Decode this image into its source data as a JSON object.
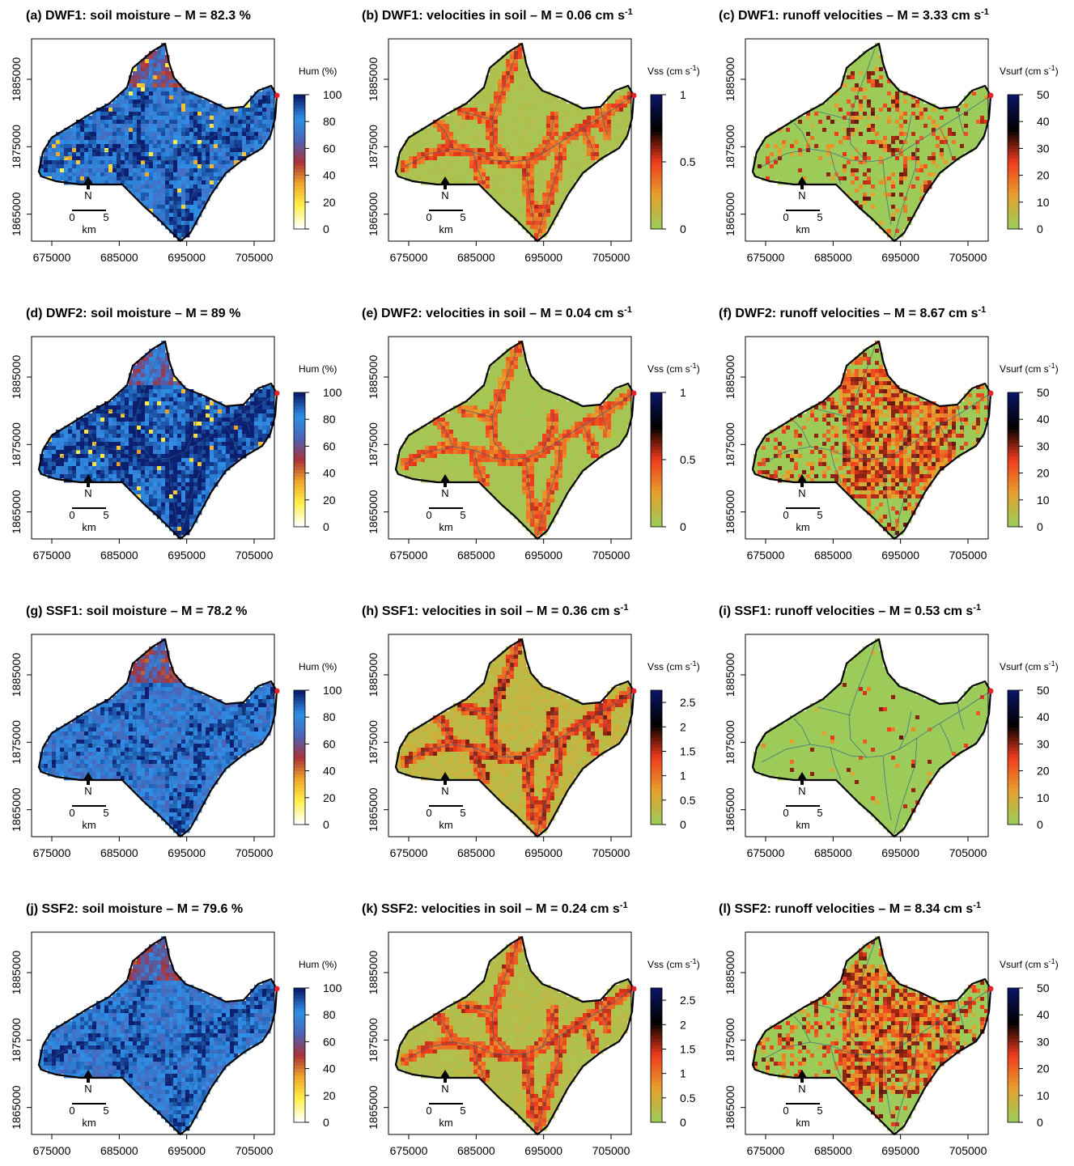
{
  "chart_data": [
    {
      "type": "heatmap",
      "id": "a",
      "title_pre": "(a) DWF1:  soil moisture – M = 82.3 %",
      "title_sup": "",
      "title_post": "",
      "var": "hum",
      "mean": 82.3,
      "colorbar": {
        "label_pre": "Hum (%)",
        "label_sup": "",
        "label_post": "",
        "palette": "hum",
        "min": 0,
        "max": 100,
        "ticks": [
          "0",
          "20",
          "40",
          "60",
          "80",
          "100"
        ]
      }
    },
    {
      "type": "heatmap",
      "id": "b",
      "title_pre": "(b) DWF1:  velocities in soil – M = 0.06 cm s",
      "title_sup": "-1",
      "title_post": "",
      "var": "vss",
      "mean": 0.06,
      "colorbar": {
        "label_pre": "Vss (cm s",
        "label_sup": "-1",
        "label_post": ")",
        "palette": "vel",
        "min": 0,
        "max": 1,
        "ticks": [
          "0",
          "0.5",
          "1"
        ]
      }
    },
    {
      "type": "heatmap",
      "id": "c",
      "title_pre": "(c) DWF1:  runoff velocities – M = 3.33 cm s",
      "title_sup": "-1",
      "title_post": "",
      "var": "vsurf",
      "mean": 3.33,
      "colorbar": {
        "label_pre": "Vsurf (cm s",
        "label_sup": "-1",
        "label_post": ")",
        "palette": "vel",
        "min": 0,
        "max": 50,
        "ticks": [
          "0",
          "10",
          "20",
          "30",
          "40",
          "50"
        ]
      }
    },
    {
      "type": "heatmap",
      "id": "d",
      "title_pre": "(d) DWF2:  soil moisture – M = 89 %",
      "title_sup": "",
      "title_post": "",
      "var": "hum",
      "mean": 89,
      "colorbar": {
        "label_pre": "Hum (%)",
        "label_sup": "",
        "label_post": "",
        "palette": "hum",
        "min": 0,
        "max": 100,
        "ticks": [
          "0",
          "20",
          "40",
          "60",
          "80",
          "100"
        ]
      }
    },
    {
      "type": "heatmap",
      "id": "e",
      "title_pre": "(e) DWF2:  velocities in soil – M = 0.04 cm s",
      "title_sup": "-1",
      "title_post": "",
      "var": "vss",
      "mean": 0.04,
      "colorbar": {
        "label_pre": "Vss (cm s",
        "label_sup": "-1",
        "label_post": ")",
        "palette": "vel",
        "min": 0,
        "max": 1,
        "ticks": [
          "0",
          "0.5",
          "1"
        ]
      }
    },
    {
      "type": "heatmap",
      "id": "f",
      "title_pre": "(f) DWF2:  runoff velocities – M = 8.67 cm s",
      "title_sup": "-1",
      "title_post": "",
      "var": "vsurf",
      "mean": 8.67,
      "colorbar": {
        "label_pre": "Vsurf (cm s",
        "label_sup": "-1",
        "label_post": ")",
        "palette": "vel",
        "min": 0,
        "max": 50,
        "ticks": [
          "0",
          "10",
          "20",
          "30",
          "40",
          "50"
        ]
      }
    },
    {
      "type": "heatmap",
      "id": "g",
      "title_pre": "(g) SSF1:  soil moisture – M = 78.2 %",
      "title_sup": "",
      "title_post": "",
      "var": "hum",
      "mean": 78.2,
      "colorbar": {
        "label_pre": "Hum (%)",
        "label_sup": "",
        "label_post": "",
        "palette": "hum",
        "min": 0,
        "max": 100,
        "ticks": [
          "0",
          "20",
          "40",
          "60",
          "80",
          "100"
        ]
      }
    },
    {
      "type": "heatmap",
      "id": "h",
      "title_pre": "(h) SSF1:  velocities in soil – M = 0.36 cm s",
      "title_sup": "-1",
      "title_post": "",
      "var": "vss",
      "mean": 0.36,
      "colorbar": {
        "label_pre": "Vss (cm s",
        "label_sup": "-1",
        "label_post": ")",
        "palette": "vel",
        "min": 0,
        "max": 2.75,
        "ticks": [
          "0",
          "0.5",
          "1",
          "1.5",
          "2",
          "2.5"
        ]
      }
    },
    {
      "type": "heatmap",
      "id": "i",
      "title_pre": "(i) SSF1:  runoff velocities – M = 0.53 cm s",
      "title_sup": "-1",
      "title_post": "",
      "var": "vsurf",
      "mean": 0.53,
      "colorbar": {
        "label_pre": "Vsurf (cm s",
        "label_sup": "-1",
        "label_post": ")",
        "palette": "vel",
        "min": 0,
        "max": 50,
        "ticks": [
          "0",
          "10",
          "20",
          "30",
          "40",
          "50"
        ]
      }
    },
    {
      "type": "heatmap",
      "id": "j",
      "title_pre": "(j) SSF2:  soil moisture – M = 79.6 %",
      "title_sup": "",
      "title_post": "",
      "var": "hum",
      "mean": 79.6,
      "colorbar": {
        "label_pre": "Hum (%)",
        "label_sup": "",
        "label_post": "",
        "palette": "hum",
        "min": 0,
        "max": 100,
        "ticks": [
          "0",
          "20",
          "40",
          "60",
          "80",
          "100"
        ]
      }
    },
    {
      "type": "heatmap",
      "id": "k",
      "title_pre": "(k) SSF2:  velocities in soil – M = 0.24 cm s",
      "title_sup": "-1",
      "title_post": "",
      "var": "vss",
      "mean": 0.24,
      "colorbar": {
        "label_pre": "Vss (cm s",
        "label_sup": "-1",
        "label_post": ")",
        "palette": "vel",
        "min": 0,
        "max": 2.75,
        "ticks": [
          "0",
          "0.5",
          "1",
          "1.5",
          "2",
          "2.5"
        ]
      }
    },
    {
      "type": "heatmap",
      "id": "l",
      "title_pre": "(l) SSF2:  runoff velocities – M = 8.34 cm s",
      "title_sup": "-1",
      "title_post": "",
      "var": "vsurf",
      "mean": 8.34,
      "colorbar": {
        "label_pre": "Vsurf (cm s",
        "label_sup": "-1",
        "label_post": ")",
        "palette": "vel",
        "min": 0,
        "max": 50,
        "ticks": [
          "0",
          "10",
          "20",
          "30",
          "40",
          "50"
        ]
      }
    }
  ],
  "axes": {
    "x_ticks": [
      "675000",
      "685000",
      "695000",
      "705000"
    ],
    "x_values": [
      675000,
      685000,
      695000,
      705000
    ],
    "y_ticks": [
      "1865000",
      "1875000",
      "1885000"
    ],
    "y_values": [
      1865000,
      1875000,
      1885000
    ],
    "xlim": [
      672000,
      708000
    ],
    "ylim": [
      1861000,
      1891000
    ]
  },
  "map_inset": {
    "north_label": "N",
    "scale_zero": "0",
    "scale_five": "5",
    "scale_unit": "km"
  },
  "colors": {
    "catchment_outline": "#000000",
    "outlet": "#e8202a",
    "rivers": "#2a5f8a",
    "hum_palette": [
      "#ffffff",
      "#fff14a",
      "#f0a62a",
      "#a8323a",
      "#4a64b8",
      "#2f8fe6",
      "#0c1f70"
    ],
    "vel_palette": [
      "#9ccb5a",
      "#e8a02a",
      "#ef3b1e",
      "#000000",
      "#0a1560"
    ]
  }
}
